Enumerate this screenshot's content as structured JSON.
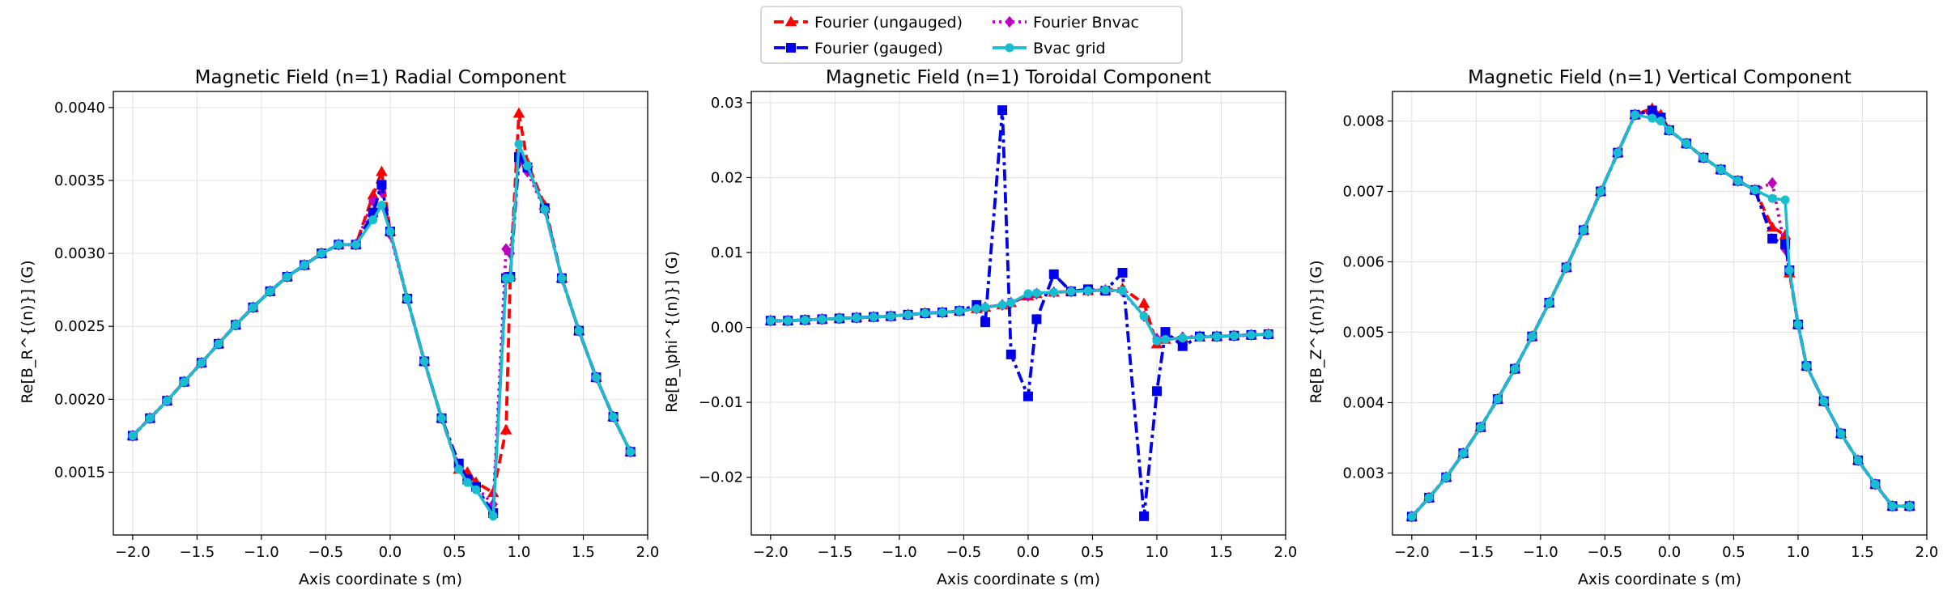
{
  "legend": {
    "placement": "top-center",
    "entries": [
      {
        "label": "Fourier (ungauged)",
        "color": "#ff0000",
        "marker": "triangle",
        "dash": "dashed"
      },
      {
        "label": "Fourier Bnvac",
        "color": "#c000c0",
        "marker": "diamond",
        "dash": "dotted"
      },
      {
        "label": "Fourier (gauged)",
        "color": "#0000ee",
        "marker": "square",
        "dash": "dashdot"
      },
      {
        "label": "Bvac grid",
        "color": "#17becf",
        "marker": "circle",
        "dash": "solid"
      }
    ]
  },
  "chart_data": [
    {
      "type": "line",
      "title": "Magnetic Field (n=1) Radial Component",
      "xlabel": "Axis coordinate s (m)",
      "ylabel": "Re[B_R^{(n)}] (G)",
      "xlim": [
        -2.15,
        2.0
      ],
      "ylim": [
        0.00107,
        0.00411
      ],
      "xticks": [
        -2.0,
        -1.5,
        -1.0,
        -0.5,
        0.0,
        0.5,
        1.0,
        1.5,
        2.0
      ],
      "xtick_labels": [
        "−2.0",
        "−1.5",
        "−1.0",
        "−0.5",
        "0.0",
        "0.5",
        "1.0",
        "1.5",
        "2.0"
      ],
      "yticks": [
        0.0015,
        0.002,
        0.0025,
        0.003,
        0.0035,
        0.004
      ],
      "ytick_labels": [
        "0.0015",
        "0.0020",
        "0.0025",
        "0.0030",
        "0.0035",
        "0.0040"
      ],
      "grid": true,
      "x": [
        -2.0,
        -1.866,
        -1.733,
        -1.6,
        -1.466,
        -1.333,
        -1.2,
        -1.066,
        -0.933,
        -0.8,
        -0.666,
        -0.533,
        -0.4,
        -0.266,
        -0.133,
        -0.066,
        0.0,
        0.133,
        0.266,
        0.4,
        0.533,
        0.6,
        0.667,
        0.8,
        0.9,
        0.933,
        1.0,
        1.066,
        1.2,
        1.333,
        1.466,
        1.6,
        1.733,
        1.866
      ],
      "series": [
        {
          "name": "Fourier (ungauged)",
          "values": [
            0.00175,
            0.00187,
            0.00199,
            0.00212,
            0.00225,
            0.00238,
            0.00251,
            0.00263,
            0.00274,
            0.00284,
            0.00292,
            0.003,
            0.00306,
            0.00306,
            0.0034,
            0.00356,
            0.00315,
            0.00269,
            0.00226,
            0.00187,
            0.00152,
            0.0015,
            0.00143,
            0.00136,
            0.00179,
            0.00285,
            0.00396,
            0.00362,
            0.00333,
            0.00283,
            0.00247,
            0.00215,
            0.00188,
            0.00164
          ]
        },
        {
          "name": "Fourier Bnvac",
          "values": [
            0.00175,
            0.00187,
            0.00199,
            0.00212,
            0.00225,
            0.00238,
            0.00251,
            0.00263,
            0.00274,
            0.00284,
            0.00292,
            0.003,
            0.00306,
            0.00306,
            0.00336,
            0.00342,
            0.00313,
            0.00269,
            0.00226,
            0.00187,
            0.00154,
            0.00145,
            0.0014,
            0.00128,
            0.00303,
            0.003,
            0.00362,
            0.00356,
            0.0033,
            0.00283,
            0.00247,
            0.00215,
            0.00188,
            0.00164
          ]
        },
        {
          "name": "Fourier (gauged)",
          "values": [
            0.00175,
            0.00187,
            0.00199,
            0.00212,
            0.00225,
            0.00238,
            0.00251,
            0.00263,
            0.00274,
            0.00284,
            0.00292,
            0.003,
            0.00306,
            0.00306,
            0.00328,
            0.00347,
            0.00315,
            0.00269,
            0.00226,
            0.00187,
            0.00156,
            0.00145,
            0.0014,
            0.00122,
            0.00283,
            0.00284,
            0.00366,
            0.00359,
            0.00331,
            0.00283,
            0.00247,
            0.00215,
            0.00188,
            0.00164
          ]
        },
        {
          "name": "Bvac grid",
          "values": [
            0.00175,
            0.00187,
            0.00199,
            0.00212,
            0.00225,
            0.00238,
            0.00251,
            0.00263,
            0.00274,
            0.00284,
            0.00292,
            0.003,
            0.00306,
            0.00306,
            0.00323,
            0.00333,
            0.00315,
            0.00269,
            0.00226,
            0.00187,
            0.00152,
            0.00143,
            0.00138,
            0.0012,
            0.00283,
            0.00283,
            0.00375,
            0.0036,
            0.0033,
            0.00283,
            0.00247,
            0.00215,
            0.00188,
            0.00164
          ]
        }
      ]
    },
    {
      "type": "line",
      "title": "Magnetic Field (n=1) Toroidal Component",
      "xlabel": "Axis coordinate s (m)",
      "ylabel": "Re[B_\\phi^{(n)}] (G)",
      "xlim": [
        -2.15,
        2.0
      ],
      "ylim": [
        -0.0277,
        0.0315
      ],
      "xticks": [
        -2.0,
        -1.5,
        -1.0,
        -0.5,
        0.0,
        0.5,
        1.0,
        1.5,
        2.0
      ],
      "xtick_labels": [
        "−2.0",
        "−1.5",
        "−1.0",
        "−0.5",
        "0.0",
        "0.5",
        "1.0",
        "1.5",
        "2.0"
      ],
      "yticks": [
        -0.02,
        -0.01,
        0.0,
        0.01,
        0.02,
        0.03
      ],
      "ytick_labels": [
        "−0.02",
        "−0.01",
        "0.00",
        "0.01",
        "0.02",
        "0.03"
      ],
      "grid": true,
      "x": [
        -2.0,
        -1.866,
        -1.733,
        -1.6,
        -1.466,
        -1.333,
        -1.2,
        -1.066,
        -0.933,
        -0.8,
        -0.666,
        -0.533,
        -0.4,
        -0.333,
        -0.2,
        -0.133,
        0.0,
        0.066,
        0.2,
        0.333,
        0.466,
        0.6,
        0.733,
        0.9,
        1.0,
        1.066,
        1.2,
        1.333,
        1.466,
        1.6,
        1.733,
        1.866
      ],
      "series": [
        {
          "name": "Fourier (ungauged)",
          "values": [
            0.0009,
            0.0009,
            0.001,
            0.0011,
            0.0012,
            0.0013,
            0.0014,
            0.0015,
            0.0017,
            0.0019,
            0.002,
            0.0022,
            0.0025,
            0.0027,
            0.003,
            0.0033,
            0.0042,
            0.0045,
            0.0047,
            0.0048,
            0.0049,
            0.005,
            0.0052,
            0.0032,
            -0.0022,
            -0.0016,
            -0.0014,
            -0.0013,
            -0.0012,
            -0.0011,
            -0.001,
            -0.0009
          ]
        },
        {
          "name": "Fourier Bnvac",
          "values": [
            0.0009,
            0.0009,
            0.001,
            0.0011,
            0.0012,
            0.0013,
            0.0014,
            0.0015,
            0.0017,
            0.0019,
            0.002,
            0.0022,
            0.0025,
            0.0027,
            0.003,
            0.0033,
            0.0042,
            0.0045,
            0.0047,
            0.0048,
            0.0049,
            0.005,
            0.0048,
            0.0015,
            -0.0015,
            -0.0014,
            -0.0013,
            -0.0012,
            -0.0012,
            -0.0011,
            -0.001,
            -0.0009
          ]
        },
        {
          "name": "Fourier (gauged)",
          "values": [
            0.0009,
            0.0009,
            0.001,
            0.0011,
            0.0012,
            0.0013,
            0.0014,
            0.0015,
            0.0017,
            0.0019,
            0.002,
            0.0022,
            0.003,
            0.0007,
            0.029,
            -0.0036,
            -0.0092,
            0.0011,
            0.0071,
            0.0048,
            0.0051,
            0.0049,
            0.0073,
            -0.0252,
            -0.0085,
            -0.0006,
            -0.0025,
            -0.0012,
            -0.0012,
            -0.0011,
            -0.001,
            -0.0009
          ]
        },
        {
          "name": "Bvac grid",
          "values": [
            0.0009,
            0.0009,
            0.001,
            0.0011,
            0.0012,
            0.0013,
            0.0014,
            0.0015,
            0.0017,
            0.0019,
            0.002,
            0.0022,
            0.0025,
            0.0027,
            0.003,
            0.0033,
            0.0045,
            0.0046,
            0.0047,
            0.0048,
            0.0049,
            0.005,
            0.0049,
            0.0015,
            -0.0018,
            -0.0016,
            -0.0014,
            -0.0013,
            -0.0012,
            -0.0011,
            -0.001,
            -0.0009
          ]
        }
      ]
    },
    {
      "type": "line",
      "title": "Magnetic Field (n=1) Vertical Component",
      "xlabel": "Axis coordinate s (m)",
      "ylabel": "Re[B_Z^{(n)}] (G)",
      "xlim": [
        -2.15,
        2.0
      ],
      "ylim": [
        0.00212,
        0.00842
      ],
      "xticks": [
        -2.0,
        -1.5,
        -1.0,
        -0.5,
        0.0,
        0.5,
        1.0,
        1.5,
        2.0
      ],
      "xtick_labels": [
        "−2.0",
        "−1.5",
        "−1.0",
        "−0.5",
        "0.0",
        "0.5",
        "1.0",
        "1.5",
        "2.0"
      ],
      "yticks": [
        0.003,
        0.004,
        0.005,
        0.006,
        0.007,
        0.008
      ],
      "ytick_labels": [
        "0.003",
        "0.004",
        "0.005",
        "0.006",
        "0.007",
        "0.008"
      ],
      "grid": true,
      "x": [
        -2.0,
        -1.866,
        -1.733,
        -1.6,
        -1.466,
        -1.333,
        -1.2,
        -1.066,
        -0.933,
        -0.8,
        -0.666,
        -0.533,
        -0.4,
        -0.266,
        -0.133,
        -0.066,
        0.0,
        0.133,
        0.266,
        0.4,
        0.533,
        0.666,
        0.8,
        0.9,
        0.933,
        1.0,
        1.066,
        1.2,
        1.333,
        1.466,
        1.6,
        1.733,
        1.866
      ],
      "series": [
        {
          "name": "Fourier (ungauged)",
          "values": [
            0.00238,
            0.00265,
            0.00294,
            0.00328,
            0.00365,
            0.00405,
            0.00448,
            0.00494,
            0.00542,
            0.00592,
            0.00645,
            0.007,
            0.00755,
            0.00809,
            0.00818,
            0.00809,
            0.00787,
            0.00768,
            0.00748,
            0.00731,
            0.00715,
            0.00702,
            0.00649,
            0.00638,
            0.00584,
            0.00511,
            0.00452,
            0.00402,
            0.00356,
            0.00318,
            0.00284,
            0.00253,
            0.00253
          ]
        },
        {
          "name": "Fourier Bnvac",
          "values": [
            0.00238,
            0.00265,
            0.00294,
            0.00328,
            0.00365,
            0.00405,
            0.00448,
            0.00494,
            0.00542,
            0.00592,
            0.00645,
            0.007,
            0.00755,
            0.00809,
            0.00813,
            0.00806,
            0.00787,
            0.00768,
            0.00748,
            0.00731,
            0.00715,
            0.00702,
            0.00712,
            0.00618,
            0.00588,
            0.00511,
            0.00452,
            0.00402,
            0.00356,
            0.00318,
            0.00284,
            0.00253,
            0.00253
          ]
        },
        {
          "name": "Fourier (gauged)",
          "values": [
            0.00238,
            0.00265,
            0.00294,
            0.00328,
            0.00365,
            0.00405,
            0.00448,
            0.00494,
            0.00542,
            0.00592,
            0.00645,
            0.007,
            0.00755,
            0.00809,
            0.00815,
            0.00805,
            0.00787,
            0.00768,
            0.00748,
            0.00731,
            0.00715,
            0.00702,
            0.00633,
            0.00625,
            0.00588,
            0.00511,
            0.00452,
            0.00402,
            0.00356,
            0.00318,
            0.00284,
            0.00253,
            0.00253
          ]
        },
        {
          "name": "Bvac grid",
          "values": [
            0.00238,
            0.00265,
            0.00294,
            0.00328,
            0.00365,
            0.00405,
            0.00448,
            0.00494,
            0.00542,
            0.00592,
            0.00645,
            0.007,
            0.00755,
            0.00809,
            0.00804,
            0.008,
            0.00787,
            0.00768,
            0.00748,
            0.00731,
            0.00715,
            0.00702,
            0.0069,
            0.00688,
            0.00588,
            0.00511,
            0.00452,
            0.00402,
            0.00356,
            0.00318,
            0.00284,
            0.00253,
            0.00253
          ]
        }
      ]
    }
  ]
}
